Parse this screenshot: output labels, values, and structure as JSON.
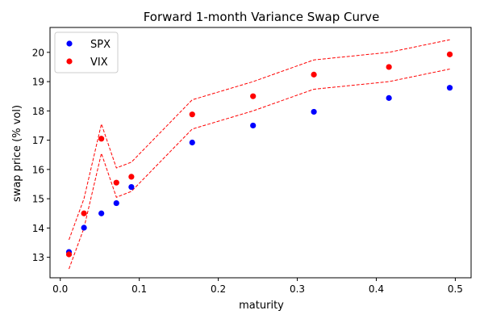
{
  "chart_data": {
    "type": "scatter",
    "title": "Forward 1-month Variance Swap Curve",
    "xlabel": "maturity",
    "ylabel": "swap price (% vol)",
    "xlim": [
      -0.013,
      0.52
    ],
    "ylim": [
      12.3,
      20.85
    ],
    "xticks": [
      0.0,
      0.1,
      0.2,
      0.3,
      0.4,
      0.5
    ],
    "xtick_labels": [
      "0.0",
      "0.1",
      "0.2",
      "0.3",
      "0.4",
      "0.5"
    ],
    "yticks": [
      13,
      14,
      15,
      16,
      17,
      18,
      19,
      20
    ],
    "ytick_labels": [
      "13",
      "14",
      "15",
      "16",
      "17",
      "18",
      "19",
      "20"
    ],
    "legend_position": "top-left",
    "grid": false,
    "series": [
      {
        "name": "SPX",
        "kind": "points",
        "color": "#0000ff",
        "x": [
          0.011,
          0.03,
          0.052,
          0.071,
          0.09,
          0.167,
          0.244,
          0.321,
          0.416,
          0.493
        ],
        "y": [
          13.18,
          14.01,
          14.5,
          14.85,
          15.4,
          16.92,
          17.5,
          17.97,
          18.44,
          18.79
        ]
      },
      {
        "name": "VIX",
        "kind": "points",
        "color": "#ff0000",
        "x": [
          0.011,
          0.03,
          0.052,
          0.071,
          0.09,
          0.167,
          0.244,
          0.321,
          0.416,
          0.493
        ],
        "y": [
          13.1,
          14.5,
          17.05,
          15.55,
          15.75,
          17.88,
          18.5,
          19.24,
          19.5,
          19.93
        ]
      },
      {
        "kind": "band-upper",
        "color": "#ff0000",
        "x": [
          0.011,
          0.03,
          0.052,
          0.071,
          0.09,
          0.167,
          0.244,
          0.321,
          0.416,
          0.493
        ],
        "y": [
          13.6,
          15.0,
          17.55,
          16.05,
          16.25,
          18.38,
          19.0,
          19.74,
          20.0,
          20.43
        ]
      },
      {
        "kind": "band-lower",
        "color": "#ff0000",
        "x": [
          0.011,
          0.03,
          0.052,
          0.071,
          0.09,
          0.167,
          0.244,
          0.321,
          0.416,
          0.493
        ],
        "y": [
          12.6,
          14.0,
          16.55,
          15.05,
          15.25,
          17.38,
          18.0,
          18.74,
          19.0,
          19.43
        ]
      }
    ]
  }
}
